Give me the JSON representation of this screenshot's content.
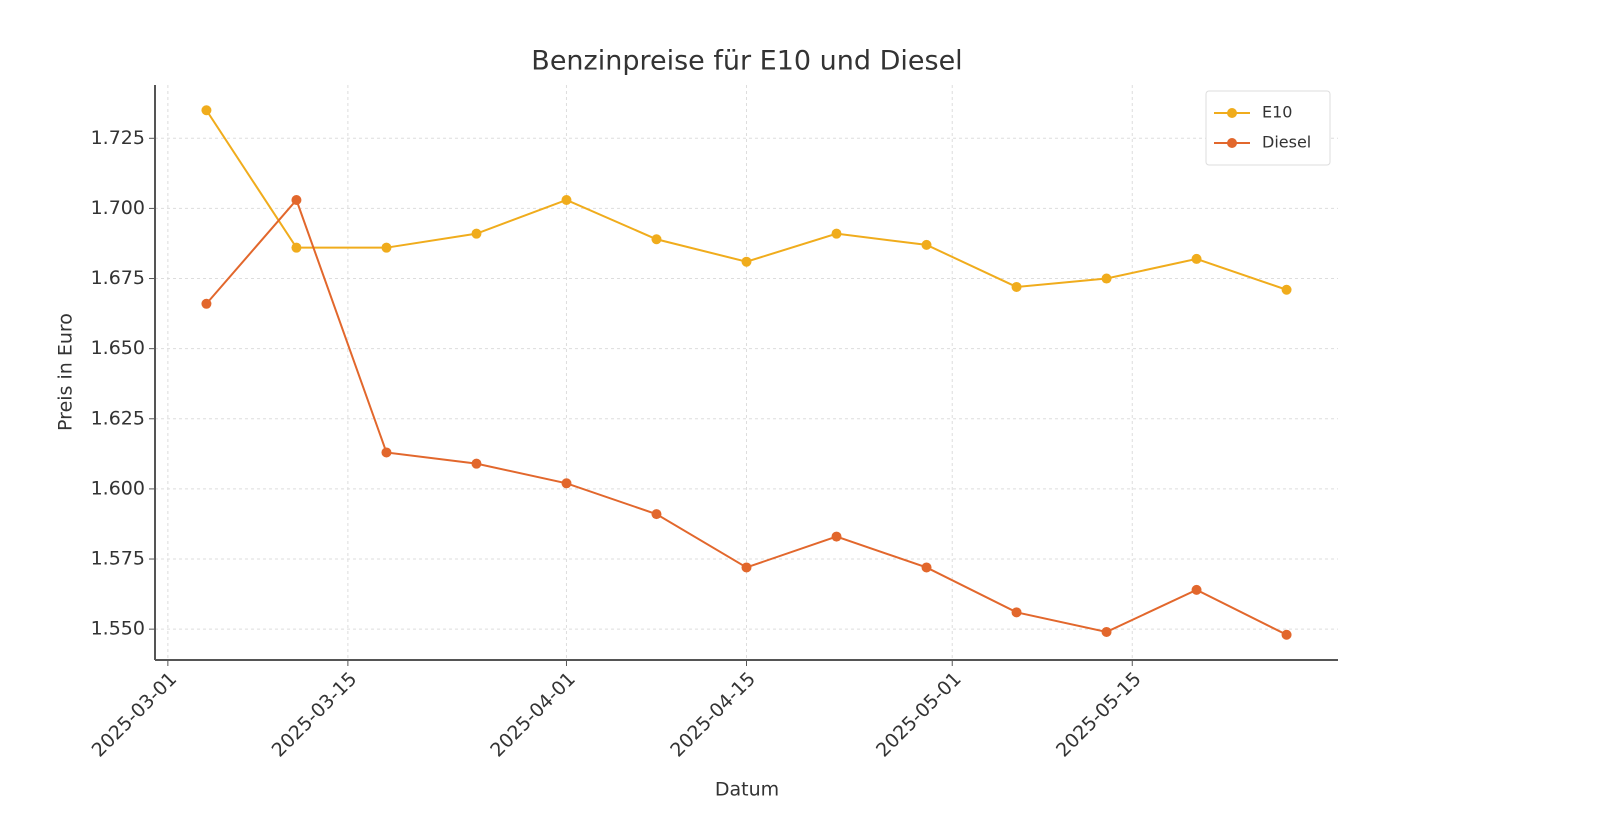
{
  "chart_data": {
    "type": "line",
    "title": "Benzinpreise für E10 und Diesel",
    "x_label": "Datum",
    "y_label": "Preis in Euro",
    "x": [
      "2025-03-04",
      "2025-03-11",
      "2025-03-18",
      "2025-03-25",
      "2025-04-01",
      "2025-04-08",
      "2025-04-15",
      "2025-04-22",
      "2025-04-29",
      "2025-05-06",
      "2025-05-13",
      "2025-05-20",
      "2025-05-27"
    ],
    "series": [
      {
        "name": "E10",
        "color": "#f0ac1c",
        "values": [
          1.735,
          1.686,
          1.686,
          1.691,
          1.703,
          1.689,
          1.681,
          1.691,
          1.687,
          1.672,
          1.675,
          1.682,
          1.671
        ]
      },
      {
        "name": "Diesel",
        "color": "#e2672c",
        "values": [
          1.666,
          1.703,
          1.613,
          1.609,
          1.602,
          1.591,
          1.572,
          1.583,
          1.572,
          1.556,
          1.549,
          1.564,
          1.548
        ]
      }
    ],
    "xlim": [
      "2025-02-28",
      "2025-05-31"
    ],
    "xticks": [
      "2025-03-01",
      "2025-03-15",
      "2025-04-01",
      "2025-04-15",
      "2025-05-01",
      "2025-05-15"
    ],
    "ylim": [
      1.539,
      1.744
    ],
    "yticks": [
      {
        "value": 1.55,
        "label": "1.550"
      },
      {
        "value": 1.575,
        "label": "1.575"
      },
      {
        "value": 1.6,
        "label": "1.600"
      },
      {
        "value": 1.625,
        "label": "1.625"
      },
      {
        "value": 1.65,
        "label": "1.650"
      },
      {
        "value": 1.675,
        "label": "1.675"
      },
      {
        "value": 1.7,
        "label": "1.700"
      },
      {
        "value": 1.725,
        "label": "1.725"
      }
    ],
    "grid": true,
    "legend": "upper-right"
  }
}
